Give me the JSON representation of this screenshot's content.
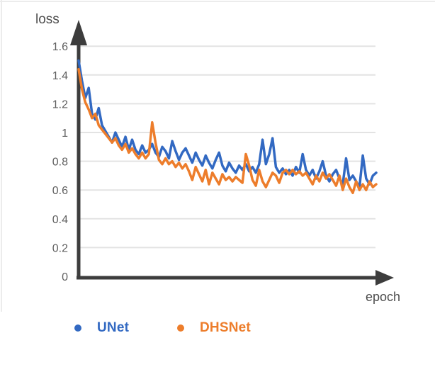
{
  "figure": {
    "background": "#ffffff",
    "border_color": "#ececec"
  },
  "chart_data": {
    "type": "line",
    "title": "",
    "xlabel": "epoch",
    "ylabel": "loss",
    "x_start_epoch": 0,
    "x_step": 1,
    "ylim": [
      0,
      1.7
    ],
    "grid": "horizontal",
    "legend_position": "bottom",
    "axis_color": "#3d3d3d",
    "grid_color": "#e3e3e3",
    "tick_color": "#606060",
    "label_color": "#4d4d4d",
    "y_ticks": [
      {
        "label": "1.6",
        "value": 1.6
      },
      {
        "label": "1.4",
        "value": 1.4
      },
      {
        "label": "1.2",
        "value": 1.2
      },
      {
        "label": "1",
        "value": 1.0
      },
      {
        "label": "0.8",
        "value": 0.8
      },
      {
        "label": "0.6",
        "value": 0.6
      },
      {
        "label": "0.4",
        "value": 0.4
      },
      {
        "label": "0.2",
        "value": 0.2
      },
      {
        "label": "0",
        "value": 0.0
      }
    ],
    "series": [
      {
        "name": "UNet",
        "color": "#3269c2",
        "values": [
          1.5,
          1.36,
          1.24,
          1.31,
          1.13,
          1.09,
          1.17,
          1.05,
          1.01,
          0.97,
          0.93,
          1.0,
          0.95,
          0.9,
          0.97,
          0.88,
          0.95,
          0.88,
          0.85,
          0.91,
          0.86,
          0.88,
          0.92,
          0.86,
          0.83,
          0.9,
          0.87,
          0.82,
          0.94,
          0.87,
          0.81,
          0.86,
          0.89,
          0.84,
          0.79,
          0.86,
          0.81,
          0.77,
          0.84,
          0.79,
          0.75,
          0.81,
          0.86,
          0.77,
          0.73,
          0.79,
          0.75,
          0.72,
          0.77,
          0.74,
          0.78,
          0.73,
          0.76,
          0.72,
          0.78,
          0.95,
          0.78,
          0.85,
          0.96,
          0.76,
          0.72,
          0.75,
          0.71,
          0.74,
          0.7,
          0.76,
          0.72,
          0.85,
          0.74,
          0.7,
          0.74,
          0.68,
          0.73,
          0.8,
          0.7,
          0.66,
          0.71,
          0.74,
          0.68,
          0.64,
          0.82,
          0.67,
          0.7,
          0.66,
          0.62,
          0.84,
          0.68,
          0.64,
          0.7,
          0.72
        ]
      },
      {
        "name": "DHSNet",
        "color": "#ed7d2b",
        "values": [
          1.44,
          1.3,
          1.21,
          1.16,
          1.1,
          1.13,
          1.05,
          1.02,
          0.99,
          0.96,
          0.93,
          0.96,
          0.91,
          0.88,
          0.92,
          0.86,
          0.89,
          0.85,
          0.82,
          0.86,
          0.82,
          0.85,
          1.07,
          0.93,
          0.81,
          0.78,
          0.82,
          0.78,
          0.8,
          0.76,
          0.79,
          0.75,
          0.78,
          0.73,
          0.67,
          0.76,
          0.71,
          0.66,
          0.74,
          0.64,
          0.72,
          0.68,
          0.64,
          0.71,
          0.67,
          0.69,
          0.66,
          0.69,
          0.67,
          0.65,
          0.85,
          0.77,
          0.67,
          0.63,
          0.74,
          0.66,
          0.62,
          0.67,
          0.72,
          0.7,
          0.65,
          0.72,
          0.74,
          0.71,
          0.74,
          0.71,
          0.73,
          0.7,
          0.72,
          0.68,
          0.64,
          0.7,
          0.66,
          0.72,
          0.68,
          0.71,
          0.67,
          0.63,
          0.7,
          0.6,
          0.68,
          0.62,
          0.58,
          0.66,
          0.6,
          0.64,
          0.6,
          0.66,
          0.62,
          0.64
        ]
      }
    ]
  }
}
